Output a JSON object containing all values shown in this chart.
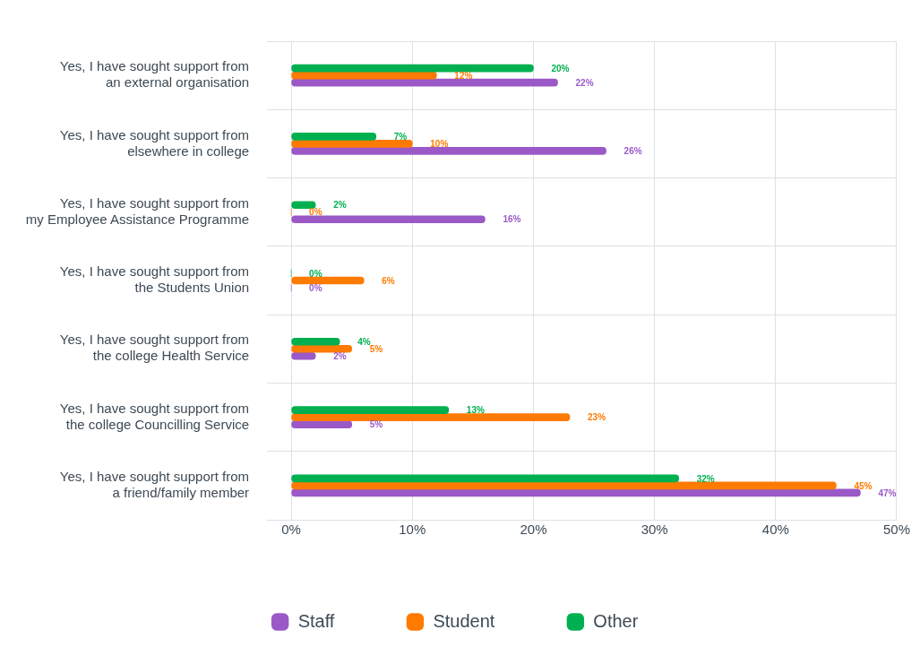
{
  "chart_data": {
    "type": "bar",
    "orientation": "horizontal",
    "categories": [
      "Yes, I have sought support from an external organisation",
      "Yes, I have sought support from elsewhere in college",
      "Yes, I have sought support from my Employee Assistance Programme",
      "Yes, I have sought support from the Students Union",
      "Yes, I have sought support from the college Health Service",
      "Yes, I have sought support from the college Councilling Service",
      "Yes, I have sought support from a friend/family member"
    ],
    "series": [
      {
        "name": "Staff",
        "color": "#9b59c8",
        "values": [
          22,
          26,
          16,
          0,
          2,
          5,
          47
        ],
        "value_labels": [
          "22%",
          "26%",
          "16%",
          "0%",
          "2%",
          "5%",
          "47%"
        ]
      },
      {
        "name": "Student",
        "color": "#ff7a00",
        "values": [
          12,
          10,
          0,
          6,
          5,
          23,
          45
        ],
        "value_labels": [
          "12%",
          "10%",
          "0%",
          "6%",
          "5%",
          "23%",
          "45%"
        ]
      },
      {
        "name": "Other",
        "color": "#00b050",
        "values": [
          20,
          7,
          2,
          0,
          4,
          13,
          32
        ],
        "value_labels": [
          "20%",
          "7%",
          "2%",
          "0%",
          "4%",
          "13%",
          "32%"
        ]
      }
    ],
    "xlim": [
      -2,
      50
    ],
    "xticks": [
      {
        "value": 0,
        "label": "0%"
      },
      {
        "value": 10,
        "label": "10%"
      },
      {
        "value": 20,
        "label": "20%"
      },
      {
        "value": 30,
        "label": "30%"
      },
      {
        "value": 40,
        "label": "40%"
      },
      {
        "value": 50,
        "label": "50%"
      }
    ],
    "grid": true,
    "legend": "bottom"
  }
}
